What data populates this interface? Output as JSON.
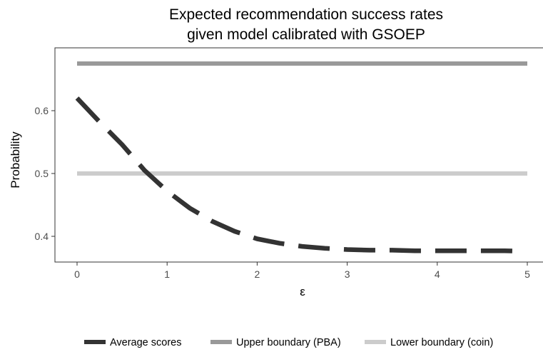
{
  "chart_data": {
    "type": "line",
    "title_lines": [
      "Expected recommendation success rates",
      "given model calibrated with GSOEP"
    ],
    "xlabel": "ε",
    "ylabel": "Probability",
    "xlim": [
      0,
      5
    ],
    "ylim": [
      0.365,
      0.69
    ],
    "x_ticks": [
      0,
      1,
      2,
      3,
      4,
      5
    ],
    "y_ticks": [
      0.4,
      0.5,
      0.6
    ],
    "y_tick_labels": [
      "0.4",
      "0.5",
      "0.6"
    ],
    "grid": false,
    "legend_position": "bottom",
    "series": [
      {
        "name": "Average scores",
        "color": "#333333",
        "style": "dashed",
        "x": [
          0.0,
          0.25,
          0.5,
          0.75,
          1.0,
          1.25,
          1.5,
          1.75,
          2.0,
          2.25,
          2.5,
          2.75,
          3.0,
          3.25,
          3.5,
          3.75,
          4.0,
          4.25,
          4.5,
          4.75,
          4.98
        ],
        "values": [
          0.62,
          0.582,
          0.546,
          0.505,
          0.472,
          0.445,
          0.424,
          0.408,
          0.396,
          0.389,
          0.384,
          0.381,
          0.379,
          0.378,
          0.378,
          0.377,
          0.377,
          0.377,
          0.377,
          0.377,
          0.376
        ]
      },
      {
        "name": "Upper boundary (PBA)",
        "color": "#999999",
        "style": "solid",
        "x": [
          0,
          5
        ],
        "values": [
          0.675,
          0.675
        ]
      },
      {
        "name": "Lower boundary (coin)",
        "color": "#cccccc",
        "style": "solid",
        "x": [
          0,
          5
        ],
        "values": [
          0.5,
          0.5
        ]
      }
    ]
  }
}
